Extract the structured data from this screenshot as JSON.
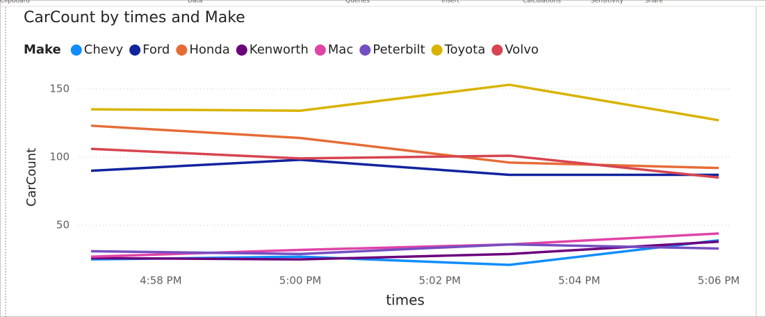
{
  "ribbon": [
    "Clipboard",
    "Data",
    "Queries",
    "Insert",
    "Calculations",
    "Sensitivity",
    "Share"
  ],
  "chart_data": {
    "type": "line",
    "title": "CarCount by times and Make",
    "legend_title": "Make",
    "x_label": "times",
    "y_label": "CarCount",
    "x": [
      "4:57 PM",
      "5:00 PM",
      "5:03 PM",
      "5:06 PM"
    ],
    "xlim": [
      "4:57 PM",
      "5:06 PM"
    ],
    "xticks": [
      "4:58 PM",
      "5:00 PM",
      "5:02 PM",
      "5:04 PM",
      "5:06 PM"
    ],
    "ylim": [
      20,
      155
    ],
    "yticks": [
      50,
      100,
      150
    ],
    "grid": true,
    "series": [
      {
        "name": "Chevy",
        "color": "#118DFF",
        "values": [
          25,
          27,
          21,
          39
        ]
      },
      {
        "name": "Ford",
        "color": "#12239E",
        "values": [
          90,
          98,
          87,
          87
        ]
      },
      {
        "name": "Honda",
        "color": "#E66C37",
        "values": [
          123,
          114,
          96,
          92
        ]
      },
      {
        "name": "Kenworth",
        "color": "#6B007B",
        "values": [
          26,
          25,
          29,
          38
        ]
      },
      {
        "name": "Mac",
        "color": "#E044A7",
        "values": [
          27,
          32,
          36,
          44
        ]
      },
      {
        "name": "Peterbilt",
        "color": "#744EC2",
        "values": [
          31,
          29,
          36,
          33
        ]
      },
      {
        "name": "Toyota",
        "color": "#D9B300",
        "values": [
          135,
          134,
          153,
          127
        ]
      },
      {
        "name": "Volvo",
        "color": "#D64550",
        "values": [
          106,
          99,
          101,
          85
        ]
      }
    ]
  }
}
